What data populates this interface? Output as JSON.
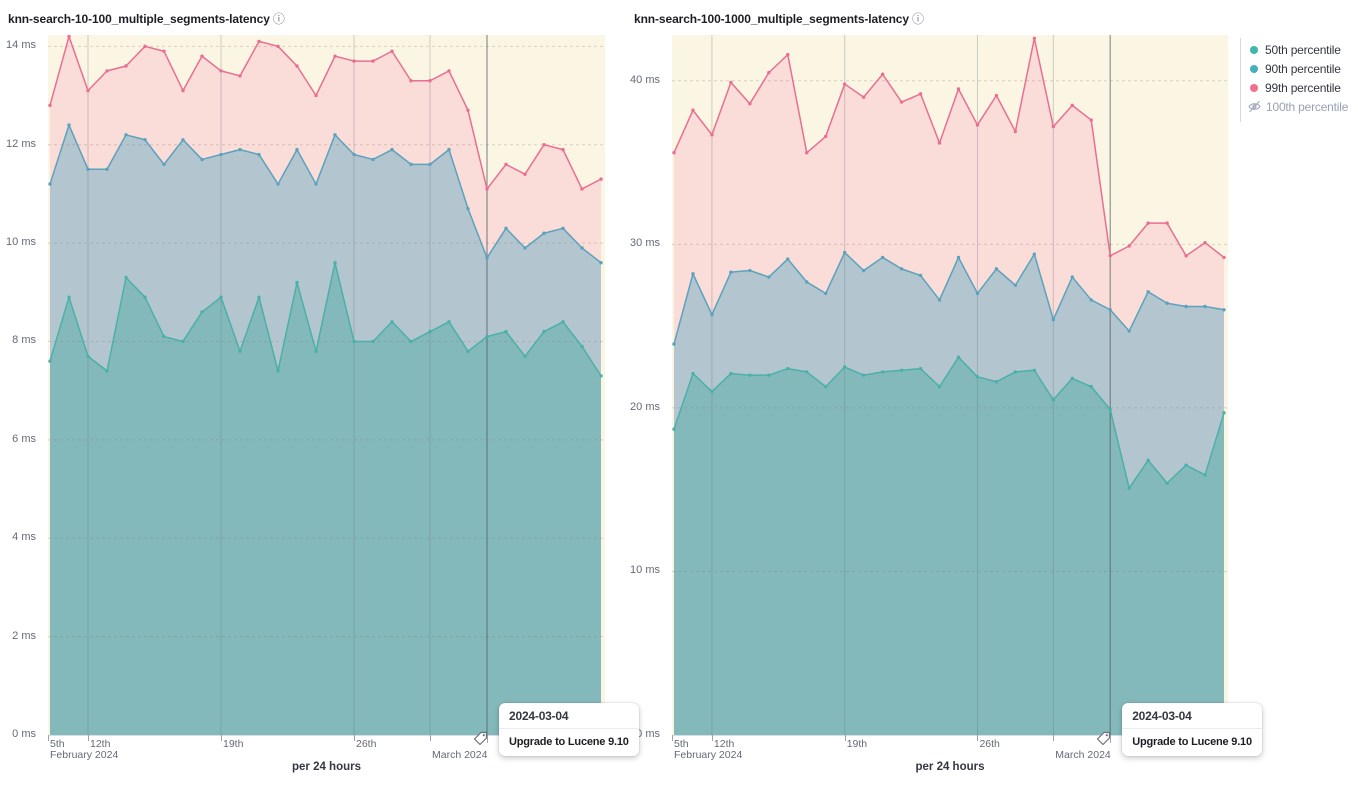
{
  "icons": {
    "info": "ⓘ"
  },
  "legend": {
    "position": "top-right",
    "items": [
      {
        "label": "50th percentile",
        "color": "#3eb6a9",
        "hidden": false
      },
      {
        "label": "90th percentile",
        "color": "#48aebe",
        "hidden": false
      },
      {
        "label": "99th percentile",
        "color": "#f0708e",
        "hidden": false
      },
      {
        "label": "100th percentile",
        "color": "#98a2b3",
        "hidden": true,
        "icon": "eye-closed"
      }
    ]
  },
  "chart_data": [
    {
      "type": "area",
      "title": "knn-search-10-100_multiple_segments-latency",
      "xlabel": "per 24 hours",
      "ylabel": "",
      "ylim": [
        0,
        14.23
      ],
      "grid": true,
      "plot_bg": "#fbf6e4",
      "y_ticks": [
        {
          "value": 0,
          "label": "0 ms"
        },
        {
          "value": 2,
          "label": "2 ms"
        },
        {
          "value": 4,
          "label": "4 ms"
        },
        {
          "value": 6,
          "label": "6 ms"
        },
        {
          "value": 8,
          "label": "8 ms"
        },
        {
          "value": 10,
          "label": "10 ms"
        },
        {
          "value": 12,
          "label": "12 ms"
        },
        {
          "value": 14,
          "label": "14 ms"
        }
      ],
      "x_ticks": [
        {
          "day": 0,
          "label": "5th"
        },
        {
          "day": 2,
          "label": "12th"
        },
        {
          "day": 9,
          "label": "19th"
        },
        {
          "day": 16,
          "label": "26th"
        }
      ],
      "x_month_ticks": [
        {
          "day": 0,
          "label": "February 2024"
        },
        {
          "day": 20,
          "label": "March 2024"
        }
      ],
      "x_start_date": "2024-02-10",
      "n_points": 30,
      "series": [
        {
          "name": "50th percentile",
          "line_color": "#4bb0a7",
          "fill_color": "#84b9bc",
          "values": [
            7.6,
            8.9,
            7.7,
            7.4,
            9.3,
            8.9,
            8.1,
            8.0,
            8.6,
            8.9,
            7.8,
            8.9,
            7.4,
            9.2,
            7.8,
            9.6,
            8.0,
            8.0,
            8.4,
            8.0,
            8.2,
            8.4,
            7.8,
            8.1,
            8.2,
            7.7,
            8.2,
            8.4,
            7.9,
            7.3
          ]
        },
        {
          "name": "90th percentile",
          "line_color": "#5ba2bc",
          "fill_color": "#b3c6d0",
          "values": [
            11.2,
            12.4,
            11.5,
            11.5,
            12.2,
            12.1,
            11.6,
            12.1,
            11.7,
            11.8,
            11.9,
            11.8,
            11.2,
            11.9,
            11.2,
            12.2,
            11.8,
            11.7,
            11.9,
            11.6,
            11.6,
            11.9,
            10.7,
            9.7,
            10.3,
            9.9,
            10.2,
            10.3,
            9.9,
            9.6
          ]
        },
        {
          "name": "99th percentile",
          "line_color": "#ea6e92",
          "fill_color": "#fadcd8",
          "values": [
            12.8,
            14.2,
            13.1,
            13.5,
            13.6,
            14.0,
            13.9,
            13.1,
            13.8,
            13.5,
            13.4,
            14.1,
            14.0,
            13.6,
            13.0,
            13.8,
            13.7,
            13.7,
            13.9,
            13.3,
            13.3,
            13.5,
            12.7,
            11.1,
            11.6,
            11.4,
            12.0,
            11.9,
            11.1,
            11.3
          ]
        },
        {
          "name": "100th percentile",
          "hidden": true,
          "values": []
        }
      ],
      "annotation": {
        "date": "2024-03-04",
        "day": 23,
        "label": "Upgrade to Lucene 9.10"
      }
    },
    {
      "type": "area",
      "title": "knn-search-100-1000_multiple_segments-latency",
      "xlabel": "per 24 hours",
      "ylabel": "",
      "ylim": [
        0,
        42.8
      ],
      "grid": true,
      "plot_bg": "#fbf6e4",
      "y_ticks": [
        {
          "value": 0,
          "label": "0 ms"
        },
        {
          "value": 10,
          "label": "10 ms"
        },
        {
          "value": 20,
          "label": "20 ms"
        },
        {
          "value": 30,
          "label": "30 ms"
        },
        {
          "value": 40,
          "label": "40 ms"
        }
      ],
      "x_ticks": [
        {
          "day": 0,
          "label": "5th"
        },
        {
          "day": 2,
          "label": "12th"
        },
        {
          "day": 9,
          "label": "19th"
        },
        {
          "day": 16,
          "label": "26th"
        }
      ],
      "x_month_ticks": [
        {
          "day": 0,
          "label": "February 2024"
        },
        {
          "day": 20,
          "label": "March 2024"
        }
      ],
      "x_start_date": "2024-02-10",
      "n_points": 30,
      "series": [
        {
          "name": "50th percentile",
          "line_color": "#4bb0a7",
          "fill_color": "#84b9bc",
          "values": [
            18.7,
            22.1,
            21.0,
            22.1,
            22.0,
            22.0,
            22.4,
            22.2,
            21.3,
            22.5,
            22.0,
            22.2,
            22.3,
            22.4,
            21.3,
            23.1,
            21.9,
            21.6,
            22.2,
            22.3,
            20.5,
            21.8,
            21.3,
            19.9,
            15.1,
            16.8,
            15.4,
            16.5,
            15.9,
            19.7
          ]
        },
        {
          "name": "90th percentile",
          "line_color": "#5ba2bc",
          "fill_color": "#b3c6d0",
          "values": [
            23.9,
            28.2,
            25.7,
            28.3,
            28.4,
            28.0,
            29.1,
            27.7,
            27.0,
            29.5,
            28.4,
            29.2,
            28.5,
            28.1,
            26.6,
            29.2,
            27.0,
            28.5,
            27.5,
            29.4,
            25.4,
            28.0,
            26.6,
            26.0,
            24.7,
            27.1,
            26.4,
            26.2,
            26.2,
            26.0
          ]
        },
        {
          "name": "99th percentile",
          "line_color": "#ea6e92",
          "fill_color": "#fadcd8",
          "values": [
            35.6,
            38.2,
            36.7,
            39.9,
            38.6,
            40.5,
            41.6,
            35.6,
            36.6,
            39.8,
            39.0,
            40.4,
            38.7,
            39.2,
            36.2,
            39.5,
            37.3,
            39.1,
            36.9,
            42.6,
            37.2,
            38.5,
            37.6,
            29.3,
            29.9,
            31.3,
            31.3,
            29.3,
            30.1,
            29.2
          ]
        },
        {
          "name": "100th percentile",
          "hidden": true,
          "values": []
        }
      ],
      "annotation": {
        "date": "2024-03-04",
        "day": 23,
        "label": "Upgrade to Lucene 9.10"
      }
    }
  ]
}
